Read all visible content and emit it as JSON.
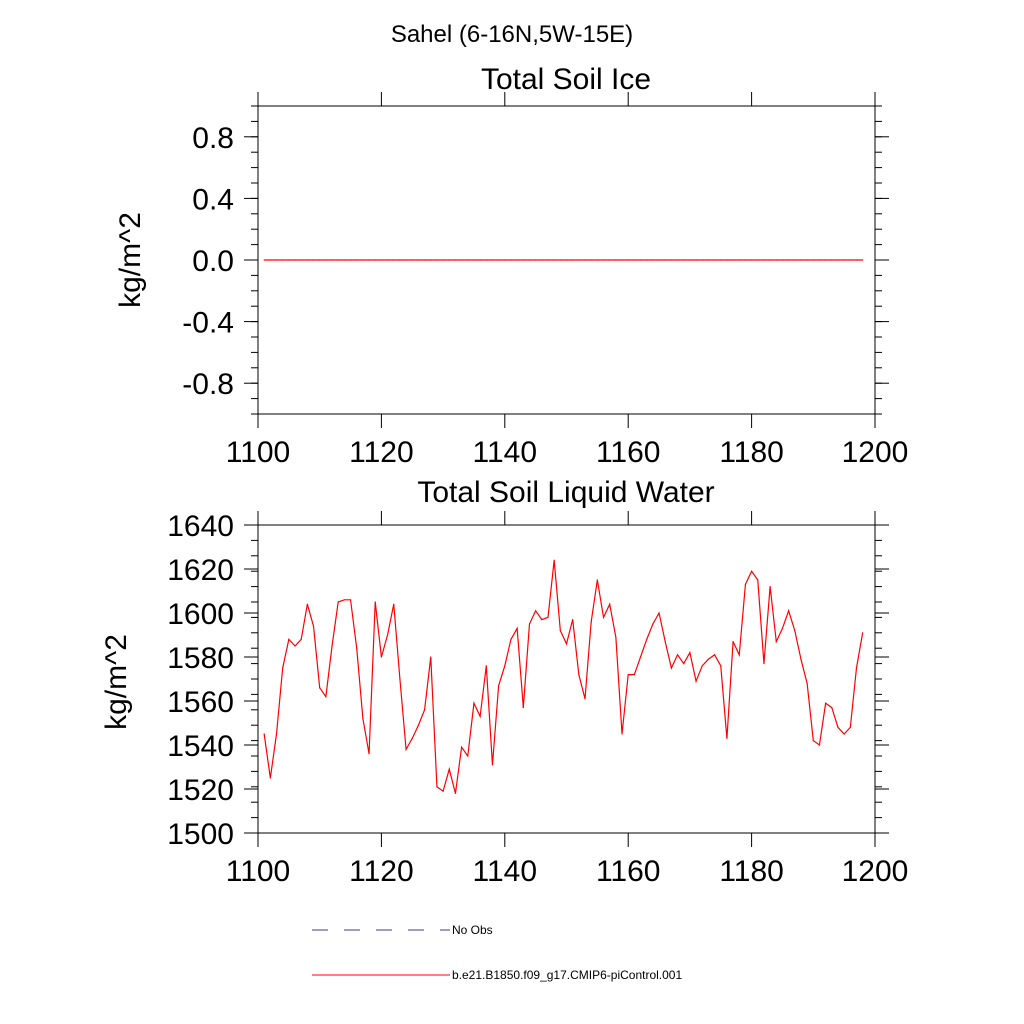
{
  "figure_title": "Sahel (6-16N,5W-15E)",
  "colors": {
    "series": "#ff0000",
    "obs": "#3a3aa8",
    "axis": "#000000"
  },
  "chart_data": [
    {
      "type": "line",
      "title": "Total Soil Ice",
      "xlabel": "",
      "ylabel": "kg/m^2",
      "xlim": [
        1100,
        1200
      ],
      "ylim": [
        -1,
        1
      ],
      "xticks": [
        1100,
        1120,
        1140,
        1160,
        1180,
        1200
      ],
      "xtick_labels": [
        "1100",
        "1120",
        "1140",
        "1160",
        "1180",
        "1200"
      ],
      "yticks": [
        0.8,
        0.4,
        0.0,
        -0.4,
        -0.8
      ],
      "ytick_labels": [
        "0.8",
        "0.4",
        "0.0",
        "-0.4",
        "-0.8"
      ],
      "series": [
        {
          "name": "b.e21.B1850.f09_g17.CMIP6-piControl.001",
          "x_start": 1101,
          "x_step": 1,
          "values": [
            0,
            0,
            0,
            0,
            0,
            0,
            0,
            0,
            0,
            0,
            0,
            0,
            0,
            0,
            0,
            0,
            0,
            0,
            0,
            0,
            0,
            0,
            0,
            0,
            0,
            0,
            0,
            0,
            0,
            0,
            0,
            0,
            0,
            0,
            0,
            0,
            0,
            0,
            0,
            0,
            0,
            0,
            0,
            0,
            0,
            0,
            0,
            0,
            0,
            0,
            0,
            0,
            0,
            0,
            0,
            0,
            0,
            0,
            0,
            0,
            0,
            0,
            0,
            0,
            0,
            0,
            0,
            0,
            0,
            0,
            0,
            0,
            0,
            0,
            0,
            0,
            0,
            0,
            0,
            0,
            0,
            0,
            0,
            0,
            0,
            0,
            0,
            0,
            0,
            0,
            0,
            0,
            0,
            0,
            0,
            0,
            0,
            0
          ]
        }
      ]
    },
    {
      "type": "line",
      "title": "Total Soil Liquid Water",
      "xlabel": "",
      "ylabel": "kg/m^2",
      "xlim": [
        1100,
        1200
      ],
      "ylim": [
        1500,
        1640
      ],
      "xticks": [
        1100,
        1120,
        1140,
        1160,
        1180,
        1200
      ],
      "xtick_labels": [
        "1100",
        "1120",
        "1140",
        "1160",
        "1180",
        "1200"
      ],
      "yticks": [
        1640,
        1620,
        1600,
        1580,
        1560,
        1540,
        1520,
        1500
      ],
      "ytick_labels": [
        "1640",
        "1620",
        "1600",
        "1580",
        "1560",
        "1540",
        "1520",
        "1500"
      ],
      "series": [
        {
          "name": "b.e21.B1850.f09_g17.CMIP6-piControl.001",
          "x_start": 1101,
          "x_step": 1,
          "values": [
            1545,
            1525,
            1545,
            1575,
            1588,
            1585,
            1588,
            1604,
            1594,
            1566,
            1562,
            1585,
            1605,
            1606,
            1606,
            1584,
            1552,
            1536,
            1605,
            1580,
            1590,
            1604,
            1570,
            1538,
            1543,
            1549,
            1556,
            1580,
            1521,
            1519,
            1529,
            1518,
            1539,
            1535,
            1559,
            1553,
            1576,
            1531,
            1567,
            1576,
            1588,
            1593,
            1557,
            1595,
            1601,
            1597,
            1598,
            1624,
            1592,
            1586,
            1597,
            1572,
            1561,
            1596,
            1615,
            1598,
            1604,
            1589,
            1545,
            1572,
            1572,
            1580,
            1588,
            1595,
            1600,
            1587,
            1575,
            1581,
            1577,
            1582,
            1569,
            1576,
            1579,
            1581,
            1576,
            1543,
            1587,
            1581,
            1613,
            1619,
            1615,
            1577,
            1612,
            1587,
            1593,
            1601,
            1592,
            1579,
            1568,
            1542,
            1540,
            1559,
            1557,
            1548,
            1545,
            1548,
            1575,
            1591
          ]
        }
      ]
    }
  ],
  "legend": [
    {
      "label": "No Obs",
      "style": "dashed"
    },
    {
      "label": "b.e21.B1850.f09_g17.CMIP6-piControl.001",
      "style": "solid"
    }
  ]
}
